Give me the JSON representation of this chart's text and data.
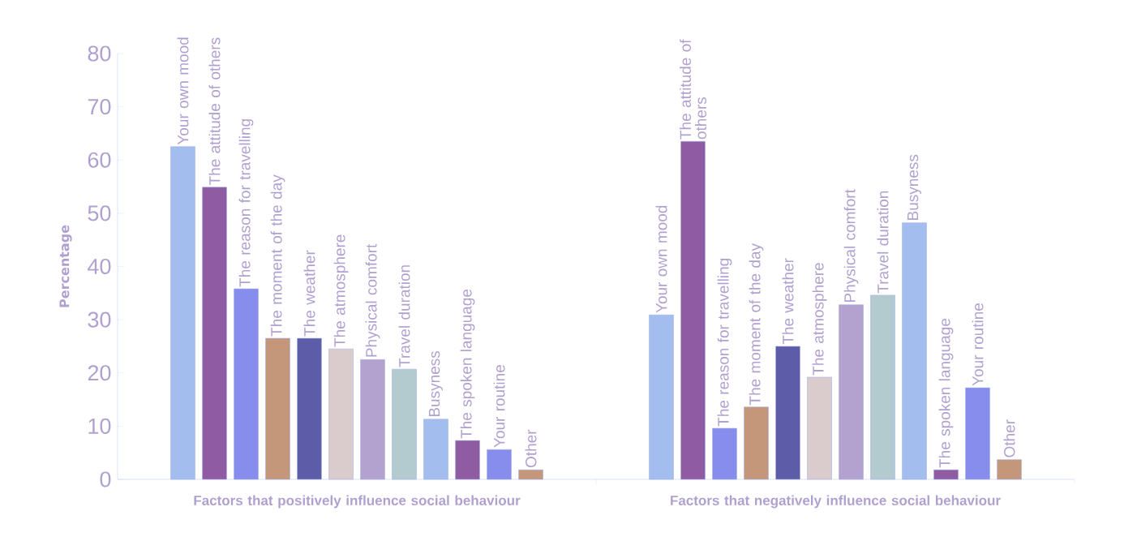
{
  "chart_data": {
    "type": "bar",
    "ylabel": "Percentage",
    "categories": [
      "Factors that positively influence social behaviour",
      "Factors that negatively influence social behaviour"
    ],
    "ylim": [
      0,
      80
    ],
    "yticks": [
      0,
      10,
      20,
      30,
      40,
      50,
      60,
      70,
      80
    ],
    "grid": false,
    "series": [
      {
        "name": "Your own mood",
        "color": "#a3bdee",
        "values": [
          62.5,
          30.9
        ]
      },
      {
        "name": "The attitude of others",
        "color": "#8f5ba3",
        "values": [
          54.9,
          63.5
        ]
      },
      {
        "name": "The reason for travelling",
        "color": "#878ded",
        "values": [
          35.8,
          9.6
        ]
      },
      {
        "name": "The moment of the day",
        "color": "#c4967a",
        "values": [
          26.5,
          13.6
        ]
      },
      {
        "name": "The weather",
        "color": "#5c5ca8",
        "values": [
          26.5,
          25.0
        ]
      },
      {
        "name": "The atmosphere",
        "color": "#dacbcd",
        "values": [
          24.5,
          19.2
        ]
      },
      {
        "name": "Physical comfort",
        "color": "#b3a2cf",
        "values": [
          22.5,
          32.8
        ]
      },
      {
        "name": "Travel duration",
        "color": "#b3cbce",
        "values": [
          20.7,
          34.6
        ]
      },
      {
        "name": "Busyness",
        "color": "#a3bdee",
        "values": [
          11.3,
          48.2
        ]
      },
      {
        "name": "The spoken language",
        "color": "#8f5ba3",
        "values": [
          7.3,
          1.8
        ]
      },
      {
        "name": "Your routine",
        "color": "#878ded",
        "values": [
          5.6,
          17.2
        ]
      },
      {
        "name": "Other",
        "color": "#c4967a",
        "values": [
          1.8,
          3.7
        ]
      }
    ]
  }
}
